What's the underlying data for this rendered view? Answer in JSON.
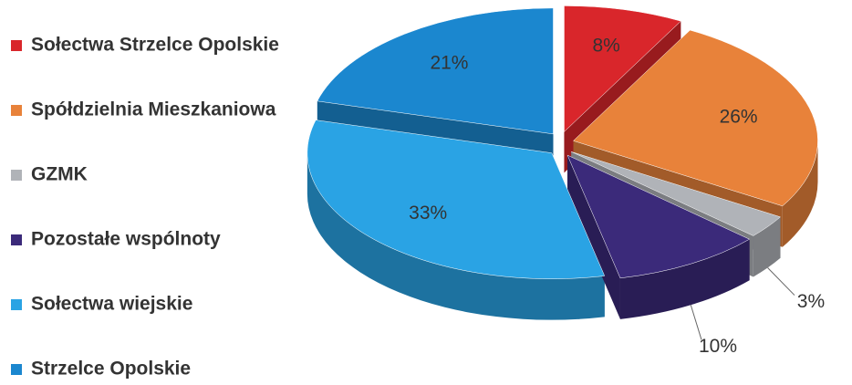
{
  "chart_data": {
    "type": "pie",
    "categories": [
      "Sołectwa Strzelce Opolskie",
      "Spółdzielnia Mieszkaniowa",
      "GZMK",
      "Pozostałe wspólnoty",
      "Sołectwa wiejskie",
      "Strzelce Opolskie"
    ],
    "values": [
      8,
      26,
      3,
      10,
      33,
      21
    ],
    "value_labels": [
      "8%",
      "26%",
      "3%",
      "10%",
      "33%",
      "21%"
    ],
    "colors": [
      "#d9262b",
      "#e8823a",
      "#b0b3b8",
      "#3b2a7a",
      "#2aa3e4",
      "#1b87cf"
    ],
    "legend": "left"
  }
}
